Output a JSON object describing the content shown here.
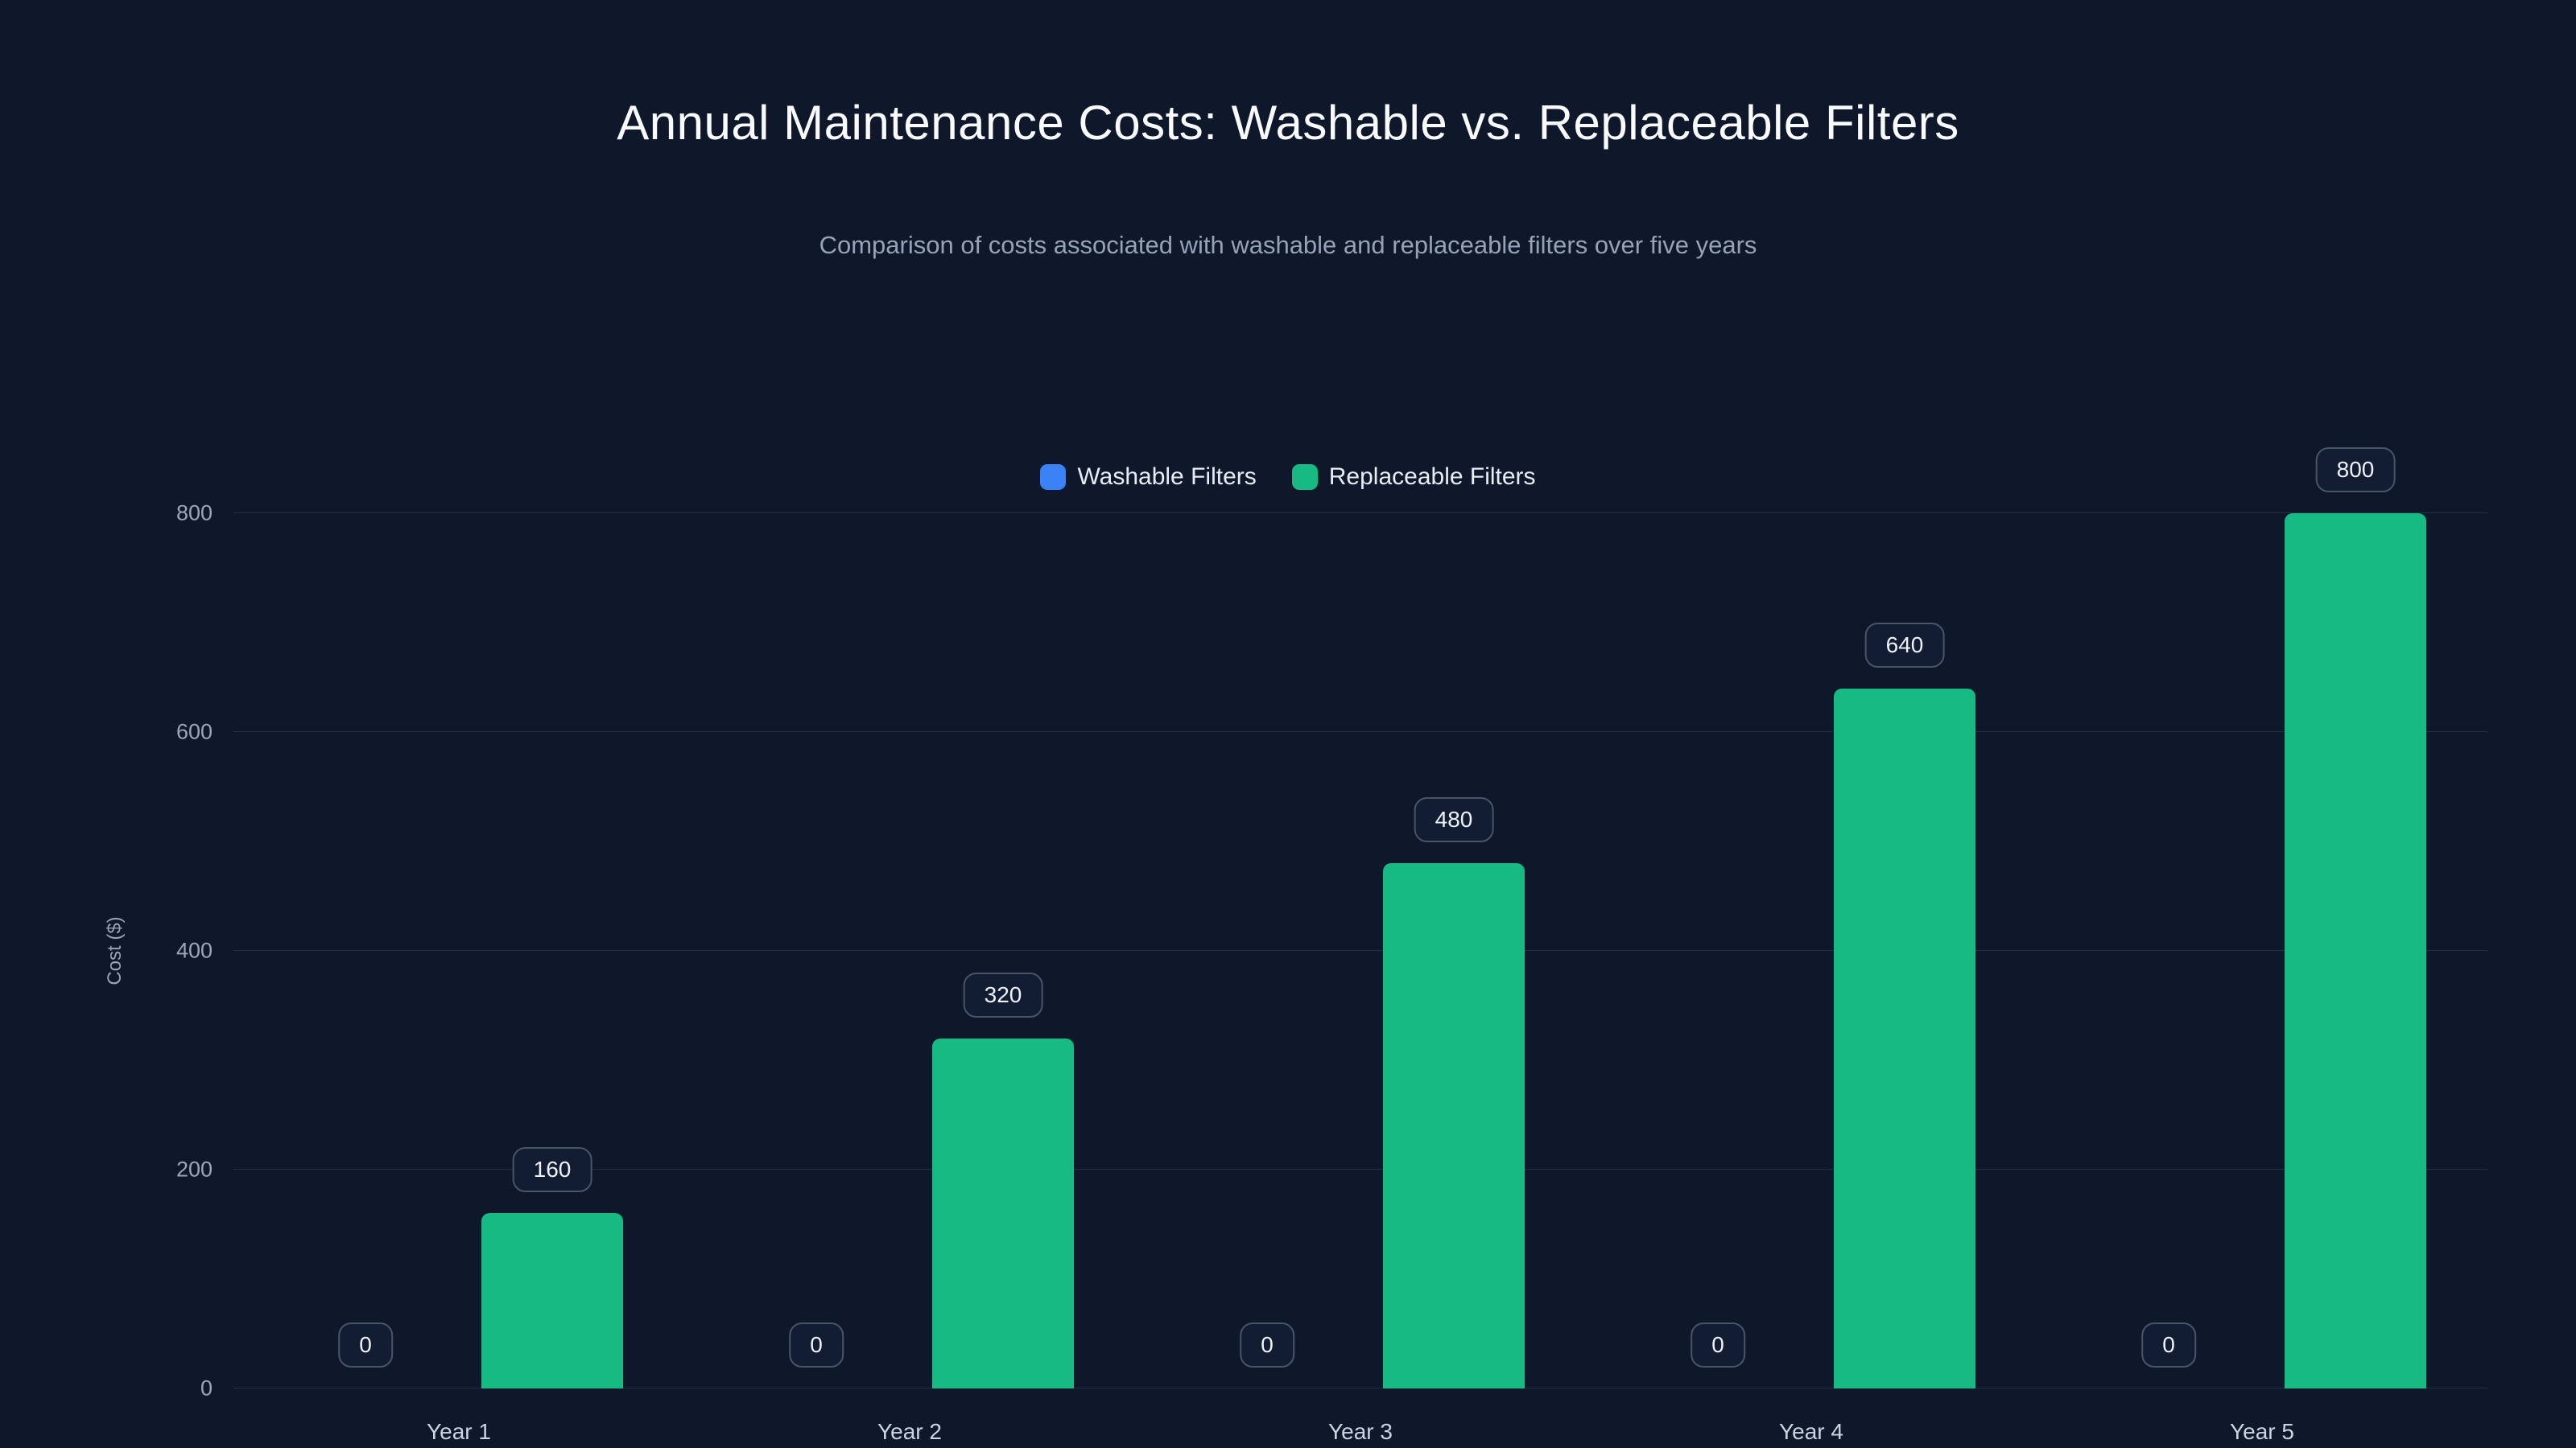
{
  "chart_data": {
    "type": "bar",
    "title": "Annual Maintenance Costs: Washable vs. Replaceable Filters",
    "subtitle": "Comparison of costs associated with washable and replaceable filters over five years",
    "categories": [
      "Year 1",
      "Year 2",
      "Year 3",
      "Year 4",
      "Year 5"
    ],
    "series": [
      {
        "name": "Washable Filters",
        "color": "#3b82f6",
        "values": [
          0,
          0,
          0,
          0,
          0
        ]
      },
      {
        "name": "Replaceable Filters",
        "color": "#16ba82",
        "values": [
          160,
          320,
          480,
          640,
          800
        ]
      }
    ],
    "ylabel": "Cost ($)",
    "ylim": [
      0,
      800
    ],
    "yticks": [
      0,
      200,
      400,
      600,
      800
    ],
    "grid": true,
    "legend_position": "top",
    "data_labels": true,
    "background": "#0f172a"
  }
}
